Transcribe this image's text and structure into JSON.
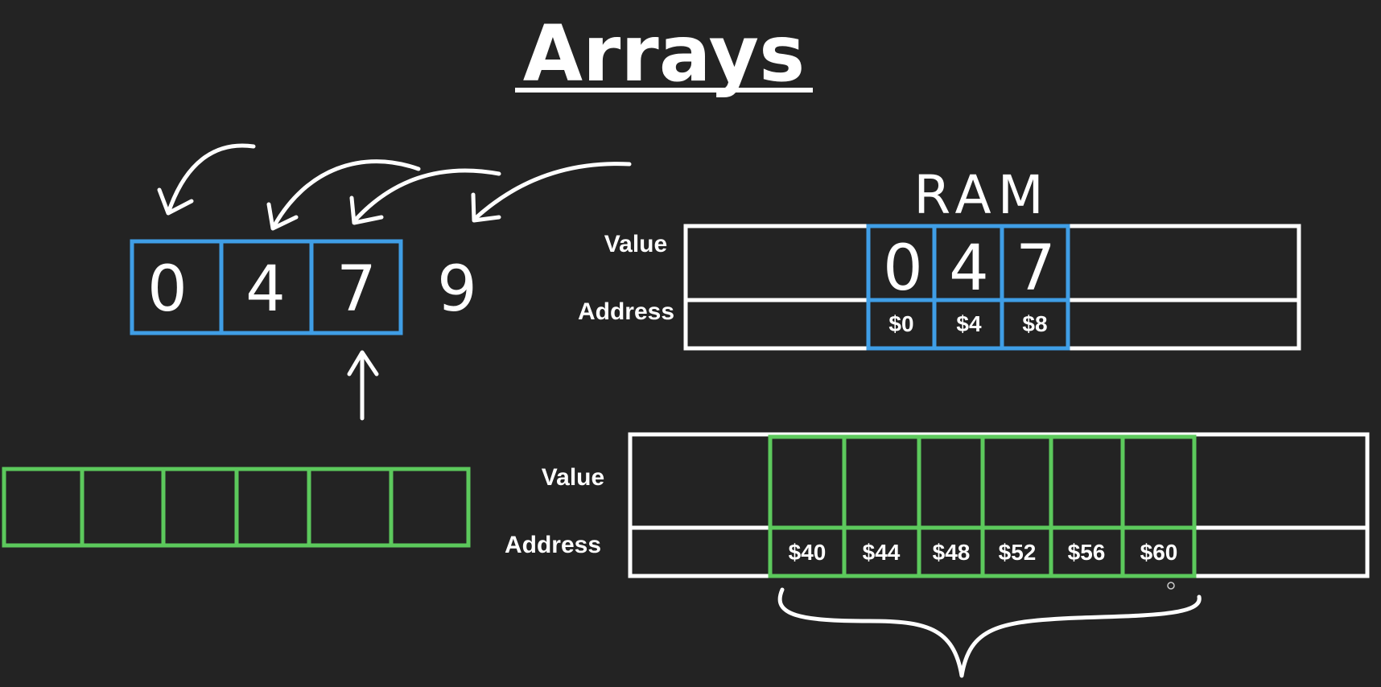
{
  "title": "Arrays",
  "colors": {
    "background": "#232323",
    "foreground": "#ffffff",
    "blue": "#3f9ee6",
    "green": "#5cc95c"
  },
  "small_array": {
    "values": [
      "0",
      "4",
      "7"
    ],
    "next_value": "9"
  },
  "green_array": {
    "cell_count": 6
  },
  "ram": {
    "label": "RAM",
    "value_label": "Value",
    "address_label": "Address",
    "values": [
      "0",
      "4",
      "7"
    ],
    "addresses": [
      "$0",
      "$4",
      "$8"
    ]
  },
  "ram_lower": {
    "value_label": "Value",
    "address_label": "Address",
    "addresses": [
      "$40",
      "$44",
      "$48",
      "$52",
      "$56",
      "$60"
    ]
  }
}
